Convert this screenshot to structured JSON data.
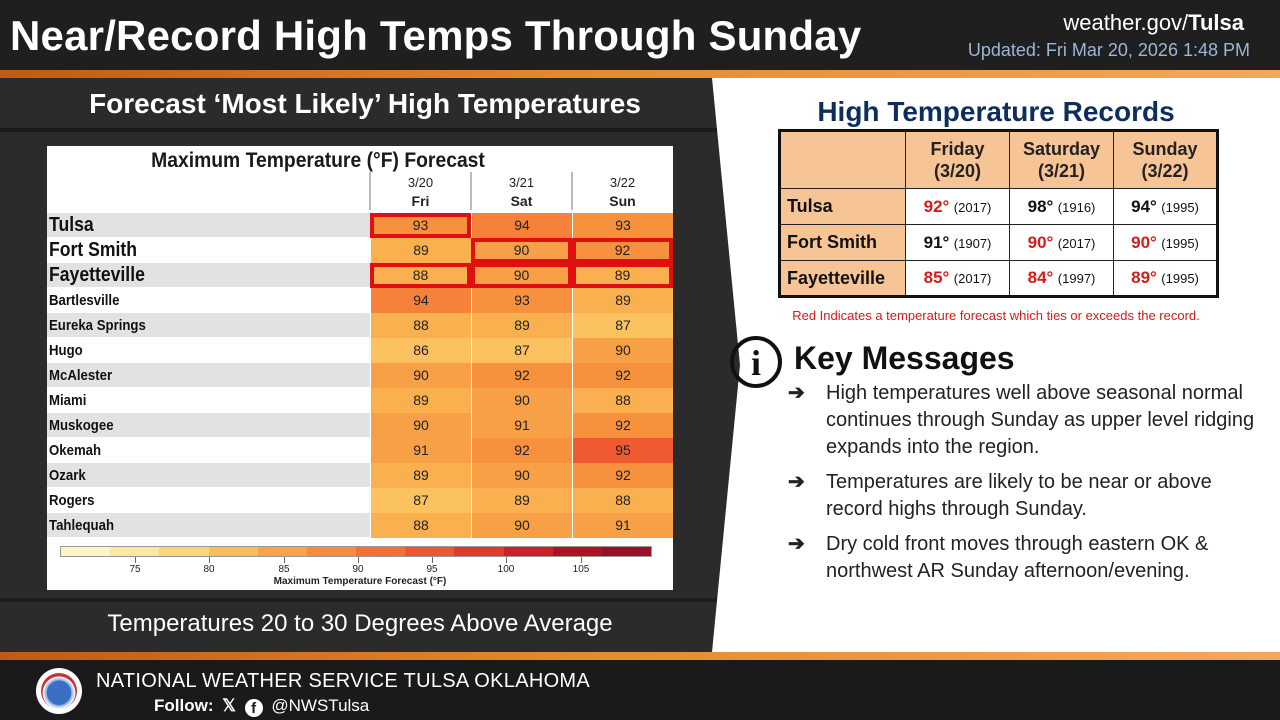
{
  "header": {
    "title": "Near/Record High Temps Through Sunday",
    "site_prefix": "weather.gov/",
    "site_office": "Tulsa",
    "updated": "Updated: Fri Mar 20, 2026 1:48 PM"
  },
  "left": {
    "heading": "Forecast ‘Most Likely’ High Temperatures",
    "footer": "Temperatures 20 to 30 Degrees Above Average"
  },
  "forecast": {
    "title": "Maximum Temperature (°F) Forecast",
    "days": [
      {
        "date": "3/20",
        "dow": "Fri"
      },
      {
        "date": "3/21",
        "dow": "Sat"
      },
      {
        "date": "3/22",
        "dow": "Sun"
      }
    ],
    "rows": [
      {
        "city": "Tulsa",
        "values": [
          93,
          94,
          93
        ],
        "highlight": [
          true,
          false,
          false
        ],
        "major": true
      },
      {
        "city": "Fort Smith",
        "values": [
          89,
          90,
          92
        ],
        "highlight": [
          false,
          true,
          true
        ],
        "major": true
      },
      {
        "city": "Fayetteville",
        "values": [
          88,
          90,
          89
        ],
        "highlight": [
          true,
          true,
          true
        ],
        "major": true
      },
      {
        "city": "Bartlesville",
        "values": [
          94,
          93,
          89
        ],
        "highlight": [
          false,
          false,
          false
        ],
        "major": false
      },
      {
        "city": "Eureka Springs",
        "values": [
          88,
          89,
          87
        ],
        "highlight": [
          false,
          false,
          false
        ],
        "major": false
      },
      {
        "city": "Hugo",
        "values": [
          86,
          87,
          90
        ],
        "highlight": [
          false,
          false,
          false
        ],
        "major": false
      },
      {
        "city": "McAlester",
        "values": [
          90,
          92,
          92
        ],
        "highlight": [
          false,
          false,
          false
        ],
        "major": false
      },
      {
        "city": "Miami",
        "values": [
          89,
          90,
          88
        ],
        "highlight": [
          false,
          false,
          false
        ],
        "major": false
      },
      {
        "city": "Muskogee",
        "values": [
          90,
          91,
          92
        ],
        "highlight": [
          false,
          false,
          false
        ],
        "major": false
      },
      {
        "city": "Okemah",
        "values": [
          91,
          92,
          95
        ],
        "highlight": [
          false,
          false,
          false
        ],
        "major": false
      },
      {
        "city": "Ozark",
        "values": [
          89,
          90,
          92
        ],
        "highlight": [
          false,
          false,
          false
        ],
        "major": false
      },
      {
        "city": "Rogers",
        "values": [
          87,
          89,
          88
        ],
        "highlight": [
          false,
          false,
          false
        ],
        "major": false
      },
      {
        "city": "Tahlequah",
        "values": [
          88,
          90,
          91
        ],
        "highlight": [
          false,
          false,
          false
        ],
        "major": false
      }
    ],
    "legend": {
      "labels": [
        "75",
        "80",
        "85",
        "90",
        "95",
        "100",
        "105"
      ],
      "title": "Maximum Temperature Forecast (°F)",
      "colors": [
        "#fdf6c0",
        "#fde7a0",
        "#fcd37e",
        "#fbbc5c",
        "#f9a24a",
        "#f68a3e",
        "#f27236",
        "#ec5630",
        "#e03a2a",
        "#cc2026",
        "#b01024",
        "#961028"
      ]
    }
  },
  "records": {
    "title": "High Temperature Records",
    "columns": [
      "Friday (3/20)",
      "Saturday (3/21)",
      "Sunday (3/22)"
    ],
    "columns_day": [
      "Friday",
      "Saturday",
      "Sunday"
    ],
    "columns_date": [
      "(3/20)",
      "(3/21)",
      "(3/22)"
    ],
    "rows": [
      {
        "city": "Tulsa",
        "cells": [
          {
            "temp": "92°",
            "year": "(2017)",
            "red": true
          },
          {
            "temp": "98°",
            "year": "(1916)",
            "red": false
          },
          {
            "temp": "94°",
            "year": "(1995)",
            "red": false
          }
        ]
      },
      {
        "city": "Fort Smith",
        "cells": [
          {
            "temp": "91°",
            "year": "(1907)",
            "red": false
          },
          {
            "temp": "90°",
            "year": "(2017)",
            "red": true
          },
          {
            "temp": "90°",
            "year": "(1995)",
            "red": true
          }
        ]
      },
      {
        "city": "Fayetteville",
        "cells": [
          {
            "temp": "85°",
            "year": "(2017)",
            "red": true
          },
          {
            "temp": "84°",
            "year": "(1997)",
            "red": true
          },
          {
            "temp": "89°",
            "year": "(1995)",
            "red": true
          }
        ]
      }
    ],
    "note": "Red Indicates a temperature forecast which ties or exceeds the record."
  },
  "key_messages": {
    "icon": "info-icon",
    "title": "Key Messages",
    "arrow": "➔",
    "items": [
      "High temperatures well above seasonal normal continues through Sunday as upper level ridging expands into the region.",
      "Temperatures are likely to be near or above record highs through Sunday.",
      "Dry cold front moves through eastern OK & northwest AR Sunday afternoon/evening."
    ]
  },
  "footer": {
    "org": "NATIONAL WEATHER SERVICE TULSA OKLAHOMA",
    "follow_label": "Follow:",
    "x_glyph": "𝕏",
    "fb_glyph": "f",
    "handle": "@NWSTulsa"
  },
  "colors": {
    "accent_orange": "#e58a2c",
    "record_header": "#f7c496",
    "record_red": "#d41c1c",
    "title_navy": "#0d2d5e",
    "highlight_border": "#e01010"
  }
}
